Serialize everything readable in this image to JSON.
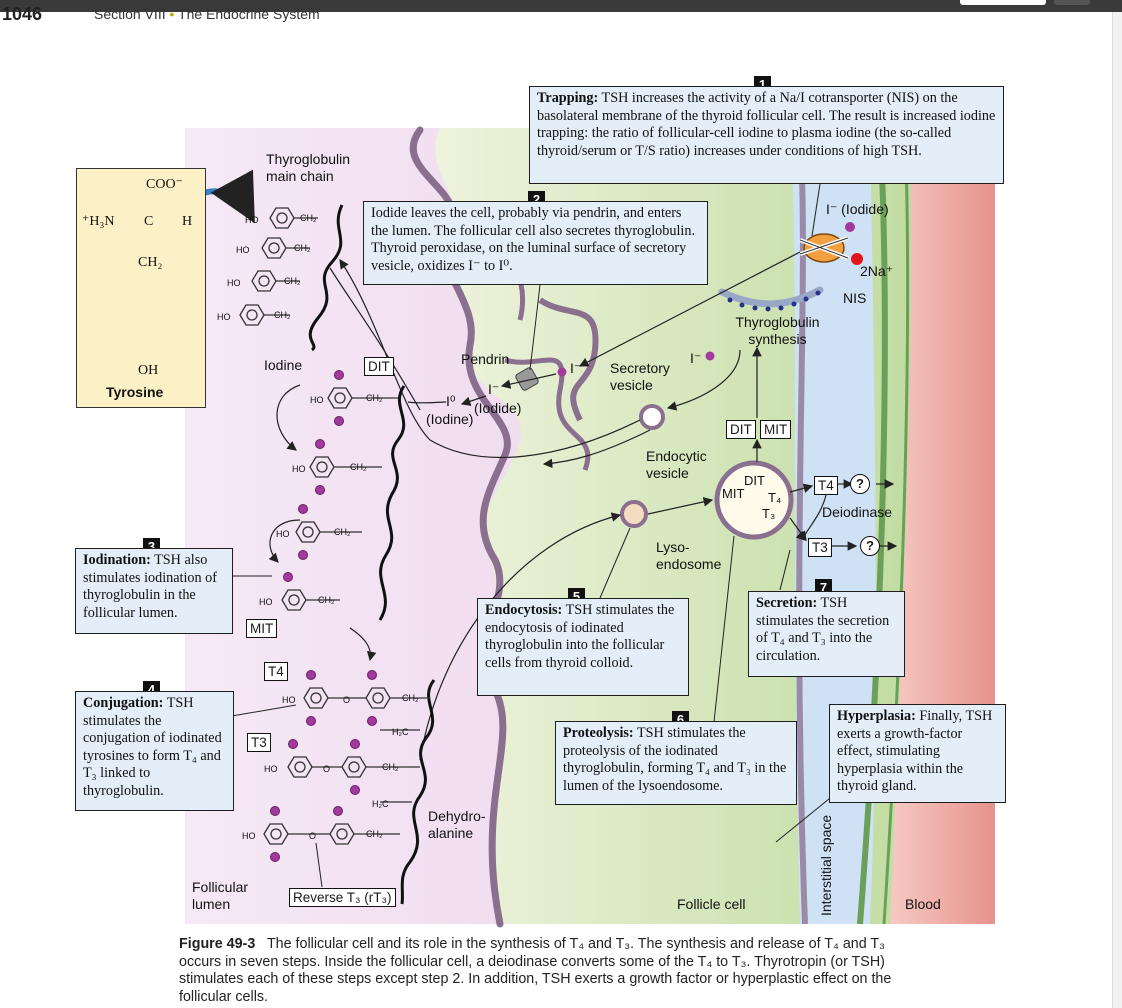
{
  "header": {
    "page_number": "1046",
    "section": "Section VIII",
    "section_separator": "•",
    "chapter": "The Endocrine System"
  },
  "tyrosine": {
    "coo": "COO⁻",
    "h3n": "⁺H₃N",
    "c": "C",
    "h": "H",
    "ch2": "CH₂",
    "oh": "OH",
    "name": "Tyrosine"
  },
  "labels": {
    "thyroglobulin_main_chain": "Thyroglobulin main chain",
    "iodine": "Iodine",
    "dit": "DIT",
    "mit": "MIT",
    "t4": "T4",
    "t3": "T3",
    "pendrin": "Pendrin",
    "iodine_zero": "I⁰",
    "iodine_zero_name": "(Iodine)",
    "iodide_minus": "I⁻",
    "iodide_name": "(Iodide)",
    "secretory_vesicle": "Secretory vesicle",
    "endocytic_vesicle": "Endocytic vesicle",
    "lysoendosome": "Lyso- endosome",
    "thyroglobulin_synthesis": "Thyroglobulin synthesis",
    "iodide_top": "I⁻ (Iodide)",
    "sodium": "2Na⁺",
    "nis": "NIS",
    "deiodinase": "Deiodinase",
    "question": "?",
    "dehydroalanine": "Dehydro- alanine",
    "reverse_t3": "Reverse T₃ (rT₃)",
    "follicular_lumen": "Follicular lumen",
    "follicle_cell": "Follicle cell",
    "interstitial_space": "Interstitial space",
    "blood": "Blood",
    "ho": "HO",
    "ch2_chain": "CH₂",
    "h2c": "H₂C",
    "o": "O",
    "lyso_dit": "DIT",
    "lyso_mit": "MIT",
    "lyso_t4": "T₄",
    "lyso_t3": "T₃"
  },
  "steps": [
    {
      "num": "1",
      "title": "Trapping:",
      "text": "TSH increases the activity of a Na/I cotransporter (NIS) on the basolateral membrane of the thyroid follicular cell. The result is increased iodine trapping: the ratio of follicular-cell iodine to plasma iodine (the so-called thyroid/serum or T/S ratio) increases under conditions of high TSH."
    },
    {
      "num": "2",
      "title": "",
      "text": "Iodide leaves the cell, probably via pendrin, and enters the lumen. The follicular cell also secretes thyroglobulin. Thyroid peroxidase, on the luminal surface of secretory vesicle, oxidizes I⁻ to I⁰."
    },
    {
      "num": "3",
      "title": "Iodination:",
      "text": "TSH also stimulates iodination of thyroglobulin in the follicular lumen."
    },
    {
      "num": "4",
      "title": "Conjugation:",
      "text": "TSH stimulates the conjugation of iodinated tyrosines to form T₄ and T₃ linked to thyroglobulin."
    },
    {
      "num": "5",
      "title": "Endocytosis:",
      "text": "TSH stimulates the endocytosis of iodinated thyroglobulin into the follicular cells from thyroid colloid."
    },
    {
      "num": "6",
      "title": "Proteolysis:",
      "text": "TSH stimulates the proteolysis of the iodinated thyroglobulin, forming T₄ and T₃ in the lumen of the lysoendosome."
    },
    {
      "num": "7",
      "title": "Secretion:",
      "text": "TSH stimulates the secretion of T₄ and T₃ into the circulation."
    }
  ],
  "hyperplasia": {
    "title": "Hyperplasia:",
    "text": "Finally, TSH exerts a growth-factor effect, stimulating hyperplasia within the thyroid gland."
  },
  "caption": {
    "title": "Figure 49-3",
    "text": "The follicular cell and its role in the synthesis of T₄ and T₃. The synthesis and release of T₄ and T₃ occurs in seven steps. Inside the follicular cell, a deiodinase converts some of the T₄ to T₃. Thyrotropin (or TSH) stimulates each of these steps except step 2. In addition, TSH exerts a growth factor or hyperplastic effect on the follicular cells."
  },
  "colors": {
    "lumen": "#efd9ef",
    "cell": "#d2e6b4",
    "interstitial": "#cfe1f4",
    "blood": "#eea09a",
    "box": "#e3eef8",
    "iodine_dot": "#a23a9c"
  }
}
